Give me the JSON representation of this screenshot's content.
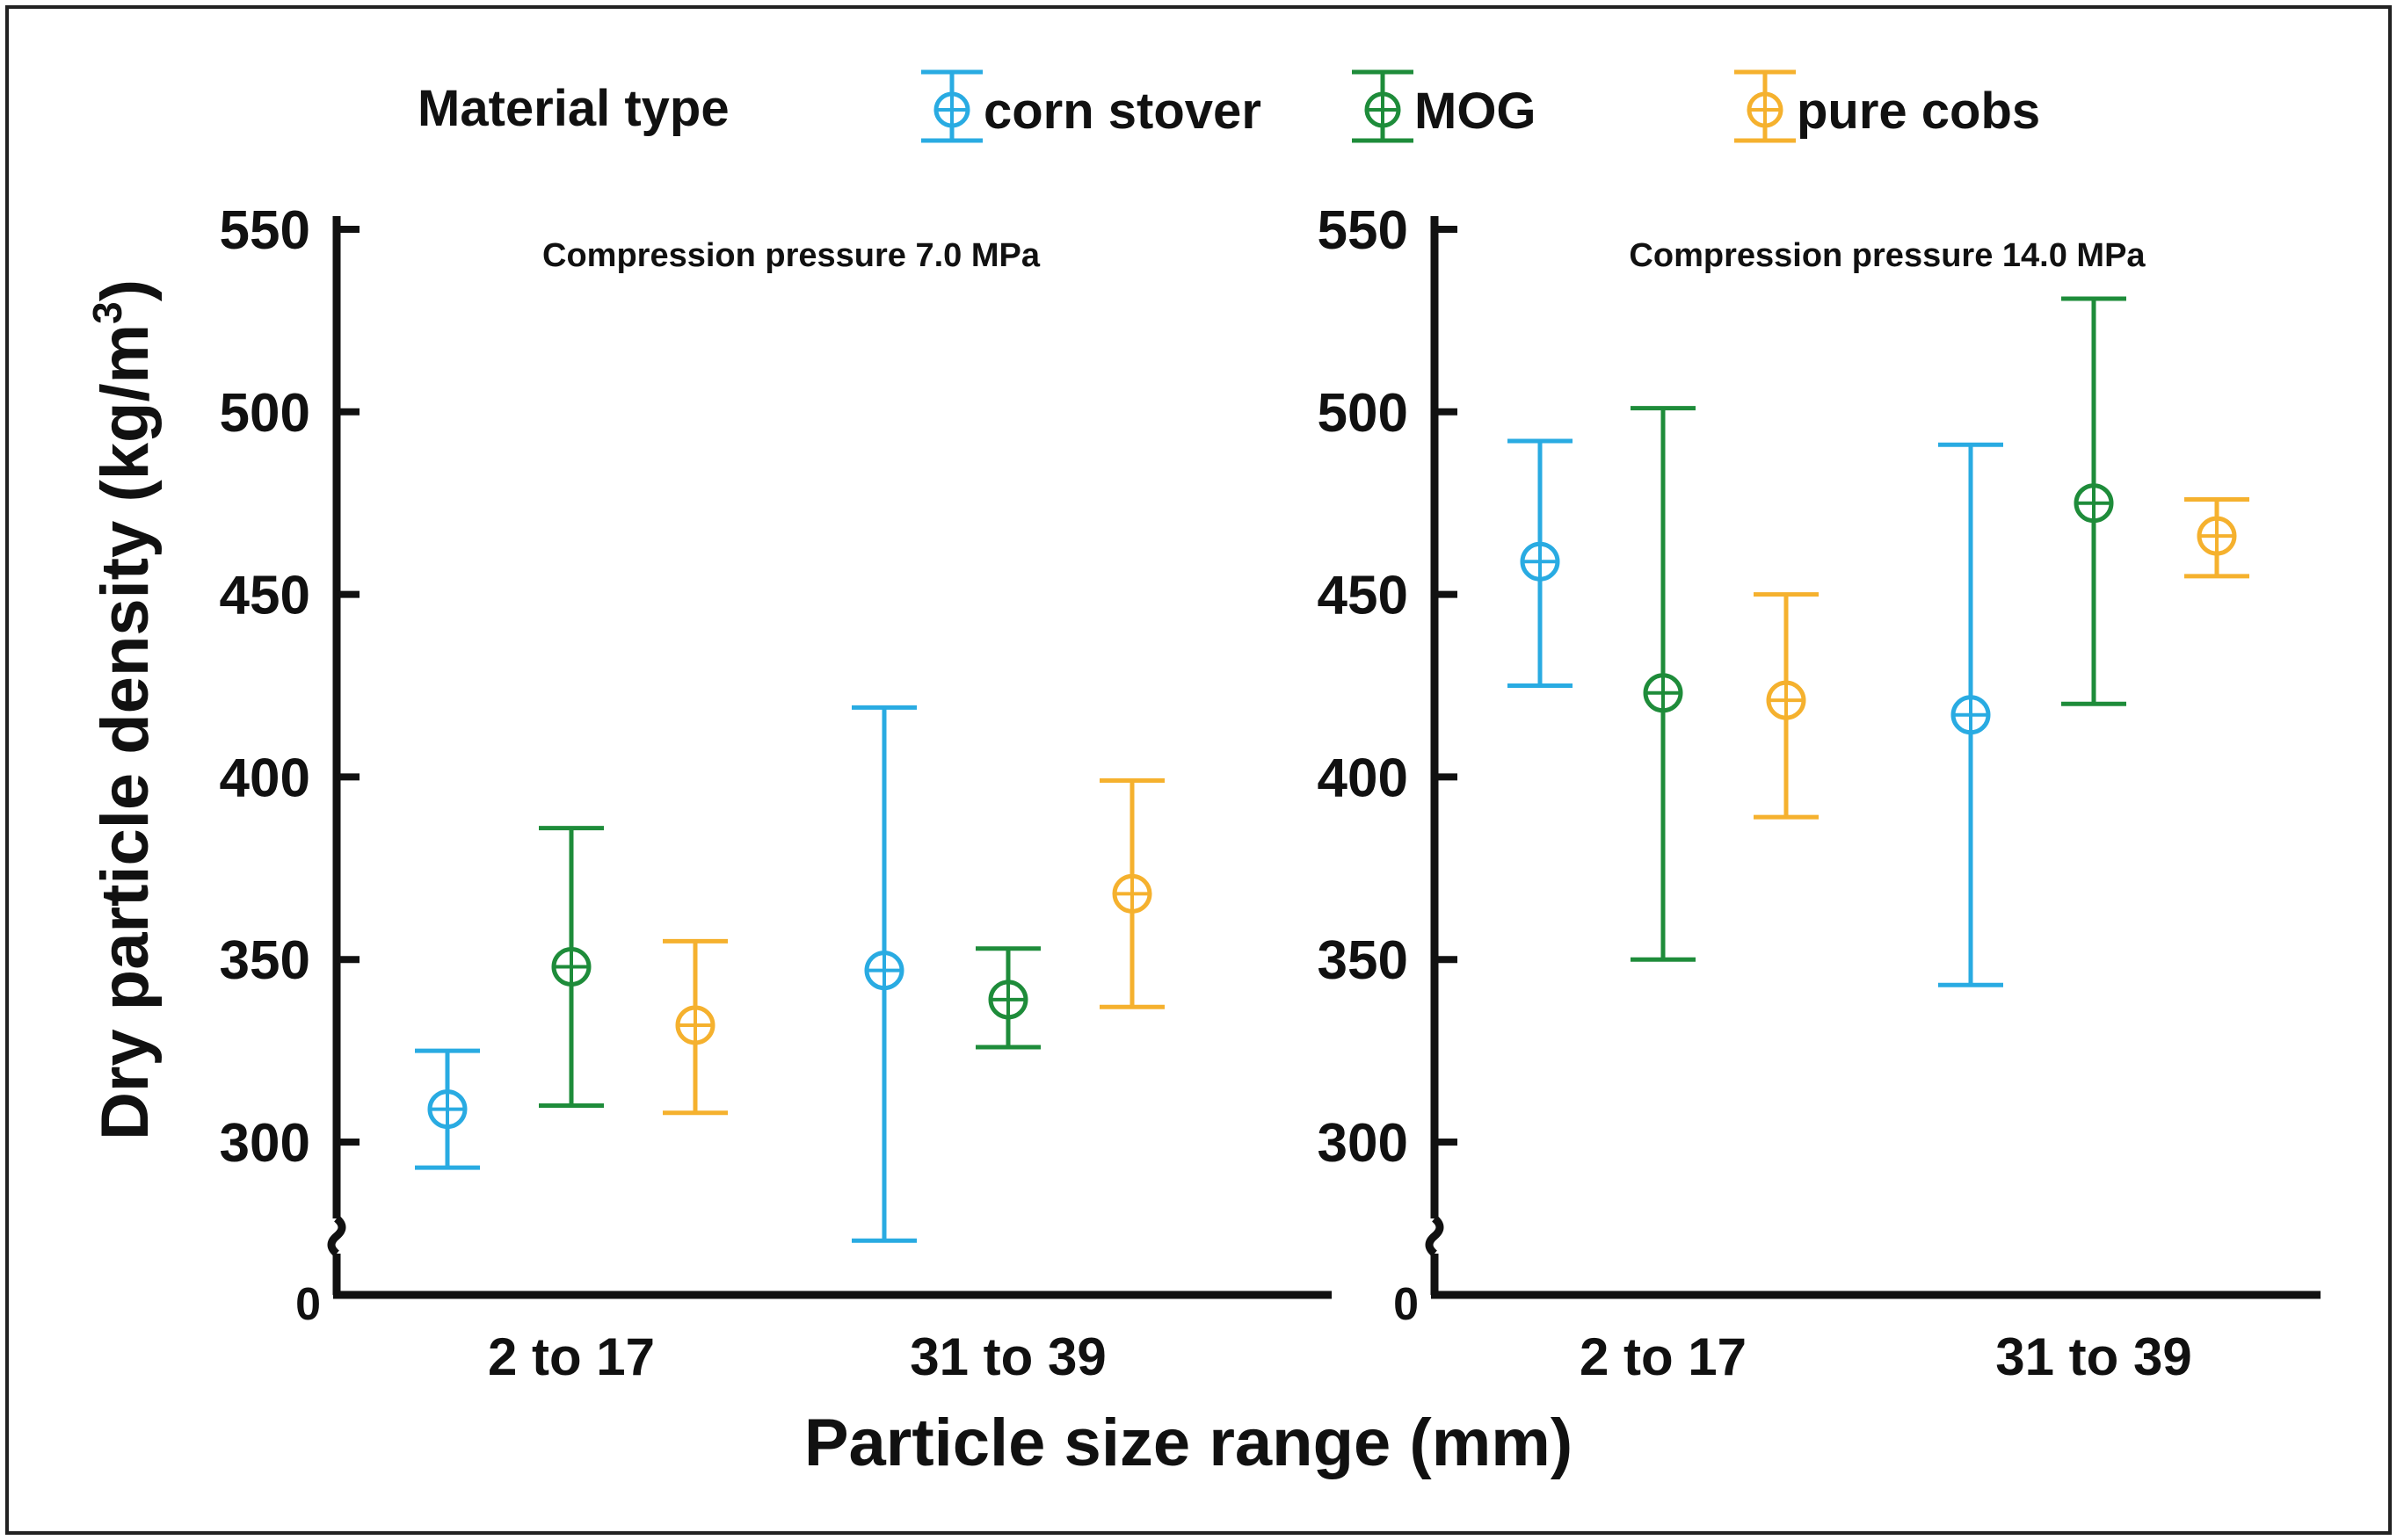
{
  "chart_data": {
    "type": "errorbar",
    "legend_title": "Material type",
    "legend_position": "top",
    "xlabel": "Particle size range (mm)",
    "ylabel_main": "Dry particle density (kg/m",
    "ylabel_sup": "3",
    "ylabel_close": ")",
    "categories": [
      "2 to 17",
      "31 to 39"
    ],
    "series": [
      {
        "name": "corn stover",
        "color": "#29abe2"
      },
      {
        "name": "MOG",
        "color": "#1e8c3a"
      },
      {
        "name": "pure cobs",
        "color": "#f5b12e"
      }
    ],
    "yticks": [
      300,
      350,
      400,
      450,
      500,
      550
    ],
    "ymin_label": "0",
    "ylim": [
      270,
      550
    ],
    "axis_break": true,
    "panels": [
      {
        "title": "Compression pressure 7.0 MPa",
        "data": [
          {
            "category": "2 to 17",
            "series": "corn stover",
            "mean": 309,
            "low": 293,
            "high": 325
          },
          {
            "category": "2 to 17",
            "series": "MOG",
            "mean": 348,
            "low": 310,
            "high": 386
          },
          {
            "category": "2 to 17",
            "series": "pure cobs",
            "mean": 332,
            "low": 308,
            "high": 355
          },
          {
            "category": "31 to 39",
            "series": "corn stover",
            "mean": 347,
            "low": 273,
            "high": 419
          },
          {
            "category": "31 to 39",
            "series": "MOG",
            "mean": 339,
            "low": 326,
            "high": 353
          },
          {
            "category": "31 to 39",
            "series": "pure cobs",
            "mean": 368,
            "low": 337,
            "high": 399
          }
        ]
      },
      {
        "title": "Compression pressure 14.0 MPa",
        "data": [
          {
            "category": "2 to 17",
            "series": "corn stover",
            "mean": 459,
            "low": 425,
            "high": 492
          },
          {
            "category": "2 to 17",
            "series": "MOG",
            "mean": 423,
            "low": 350,
            "high": 501
          },
          {
            "category": "2 to 17",
            "series": "pure cobs",
            "mean": 421,
            "low": 389,
            "high": 450
          },
          {
            "category": "31 to 39",
            "series": "corn stover",
            "mean": 417,
            "low": 343,
            "high": 491
          },
          {
            "category": "31 to 39",
            "series": "MOG",
            "mean": 475,
            "low": 420,
            "high": 531
          },
          {
            "category": "31 to 39",
            "series": "pure cobs",
            "mean": 466,
            "low": 455,
            "high": 476
          }
        ]
      }
    ]
  }
}
